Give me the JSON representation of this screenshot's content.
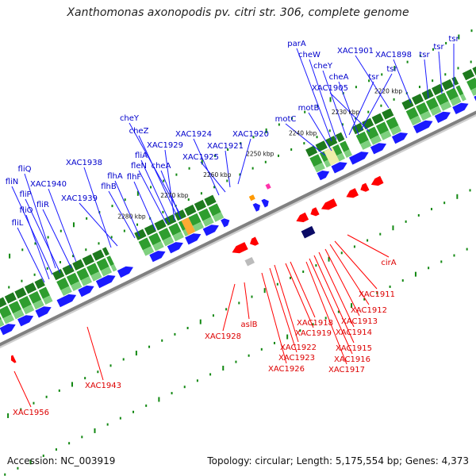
{
  "title": "Xanthomonas axonopodis pv. citri str. 306, complete genome",
  "footer": {
    "accession": "Accession: NC_003919",
    "topology": "Topology: circular; Length: 5,175,554 bp; Genes: 4,373"
  },
  "colors": {
    "forward_gene": "#1a1aff",
    "reverse_gene": "#ff0000",
    "forward_label": "#0000cc",
    "reverse_label": "#dd0000",
    "backbone": "#808080",
    "green_band": "#33aa33",
    "tick": "#118811"
  },
  "kbp_ticks": [
    {
      "label": "2220 kbp"
    },
    {
      "label": "2230 kbp"
    },
    {
      "label": "2240 kbp"
    },
    {
      "label": "2250 kbp"
    },
    {
      "label": "2260 kbp"
    },
    {
      "label": "2270 kbp"
    },
    {
      "label": "2280 kbp"
    }
  ],
  "forward_labels": [
    "tsr",
    "tsr",
    "tsr",
    "XAC1898",
    "XAC1901",
    "parA",
    "cheW",
    "tsr",
    "tsr",
    "cheY",
    "cheA",
    "XAC1905",
    "motB",
    "motC",
    "XAC1920",
    "XAC1921",
    "XAC1924",
    "XAC1925",
    "cheY",
    "cheZ",
    "XAC1929",
    "fliA",
    "fleN",
    "cheA",
    "flhF",
    "flhA",
    "flhB",
    "XAC1938",
    "XAC1939",
    "fliQ",
    "XAC1940",
    "fliN",
    "fliP",
    "fliR",
    "fliO",
    "fliL"
  ],
  "reverse_labels": [
    "cirA",
    "XAC1911",
    "XAC1912",
    "XAC1913",
    "XAC1914",
    "XAC1915",
    "XAC1916",
    "XAC1917",
    "XAC1918",
    "XAC1919",
    "XAC1922",
    "XAC1923",
    "XAC1926",
    "aslB",
    "XAC1928",
    "XAC1943",
    "XAC1956"
  ]
}
